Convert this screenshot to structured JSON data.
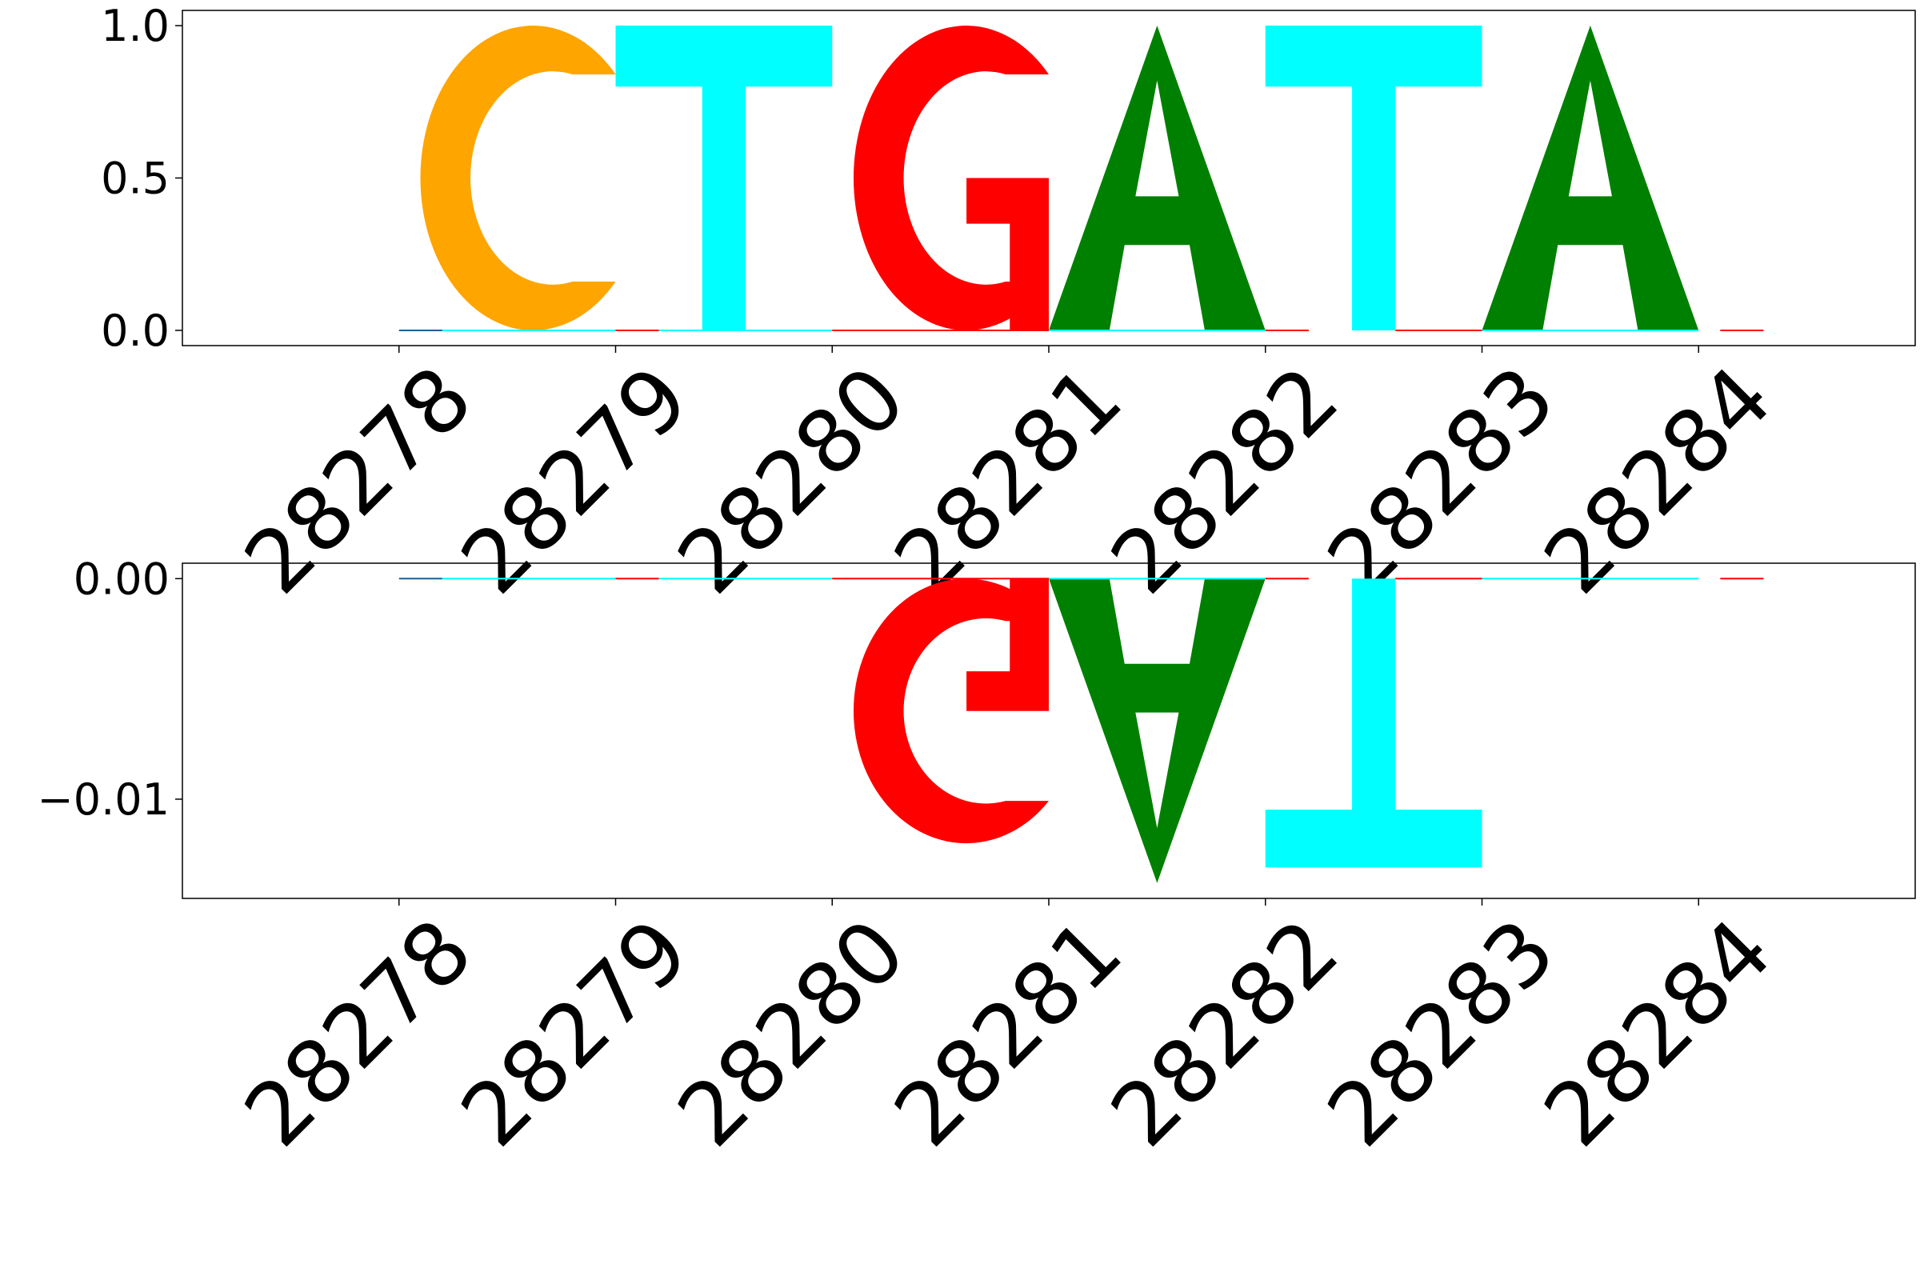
{
  "chart_data": [
    {
      "type": "sequence-logo",
      "positions": [
        "28278",
        "28279",
        "28280",
        "28281",
        "28282",
        "28283",
        "28284"
      ],
      "ylim": [
        -0.05,
        1.05
      ],
      "yticks": [
        {
          "value": 0.0,
          "label": "0.0"
        },
        {
          "value": 0.5,
          "label": "0.5"
        },
        {
          "value": 1.0,
          "label": "1.0"
        }
      ],
      "letters": [
        {
          "letter": "C",
          "start": 28278,
          "end": 28279,
          "bottom": 0,
          "top": 1.0
        },
        {
          "letter": "T",
          "start": 28279,
          "end": 28280,
          "bottom": 0,
          "top": 1.0
        },
        {
          "letter": "G",
          "start": 28280,
          "end": 28281,
          "bottom": 0,
          "top": 1.0
        },
        {
          "letter": "A",
          "start": 28281,
          "end": 28282,
          "bottom": 0,
          "top": 1.0
        },
        {
          "letter": "T",
          "start": 28282,
          "end": 28283,
          "bottom": 0,
          "top": 1.0
        },
        {
          "letter": "A",
          "start": 28283,
          "end": 28284,
          "bottom": 0,
          "top": 1.0
        }
      ]
    },
    {
      "type": "sequence-logo",
      "positions": [
        "28278",
        "28279",
        "28280",
        "28281",
        "28282",
        "28283",
        "28284"
      ],
      "ylim": [
        -0.0145,
        0.0007
      ],
      "yticks": [
        {
          "value": 0.0,
          "label": "0.00"
        },
        {
          "value": -0.01,
          "label": "−0.01"
        }
      ],
      "letters": [
        {
          "letter": "G",
          "start": 28280,
          "end": 28281,
          "bottom": -0.012,
          "top": 0
        },
        {
          "letter": "A",
          "start": 28281,
          "end": 28282,
          "bottom": -0.0138,
          "top": 0
        },
        {
          "letter": "T",
          "start": 28282,
          "end": 28283,
          "bottom": -0.0131,
          "top": 0
        }
      ]
    }
  ],
  "colors": {
    "A": "#008000",
    "C": "#ffa500",
    "G": "#ff0000",
    "T": "#00ffff",
    "axis": "#000000",
    "background": "#ffffff"
  }
}
